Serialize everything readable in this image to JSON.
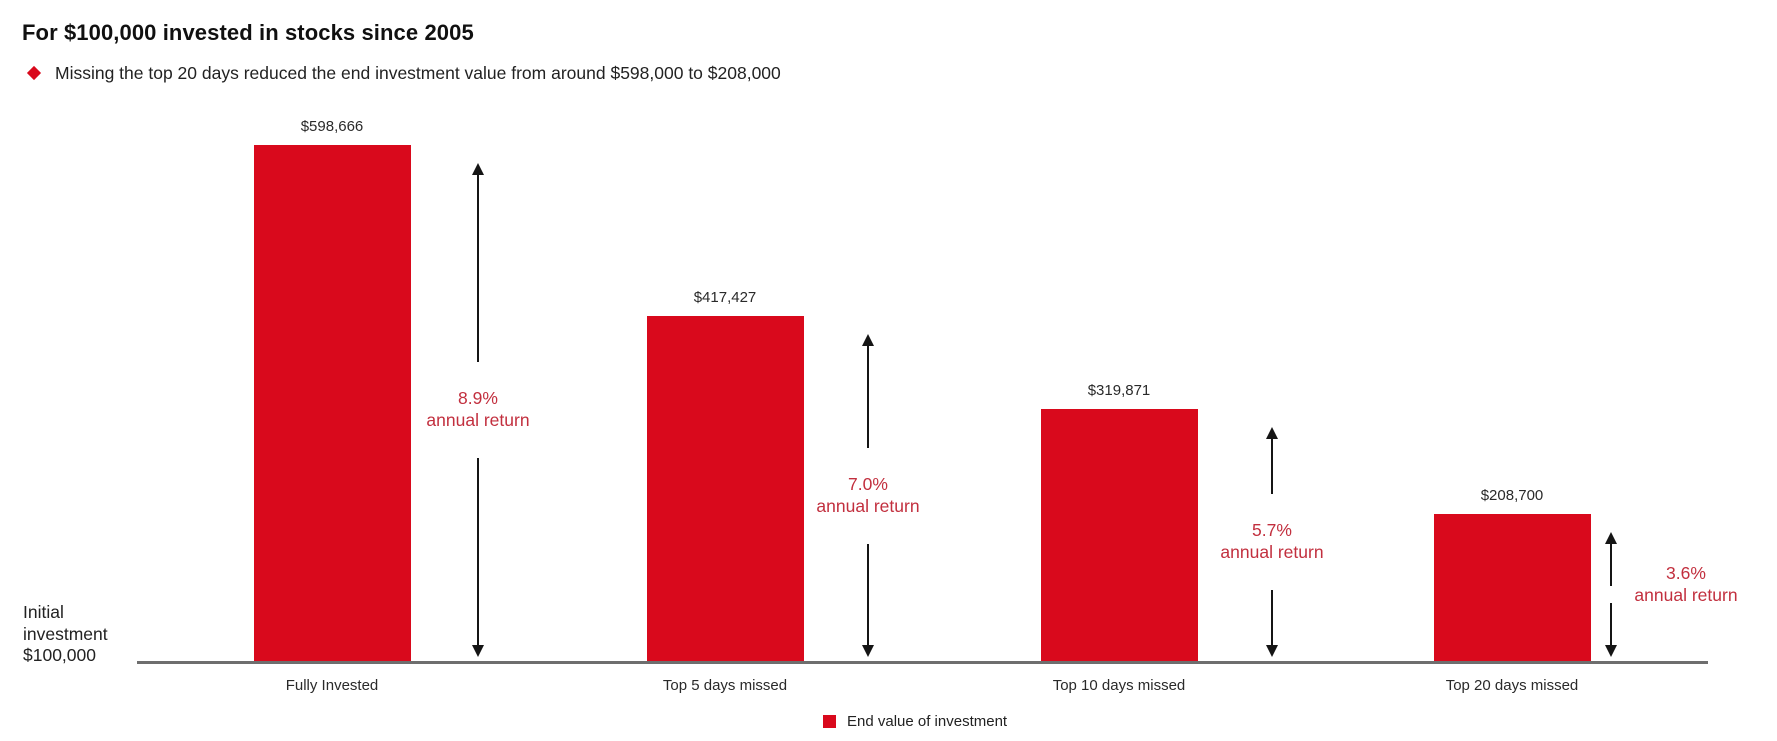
{
  "title": "For $100,000 invested in stocks since 2005",
  "bullet": {
    "text": "Missing the top 20 days reduced the end investment value from around $598,000 to $208,000"
  },
  "axis_label": {
    "line1": "Initial",
    "line2": "investment",
    "line3": "$100,000"
  },
  "legend": {
    "label": "End value of investment"
  },
  "colors": {
    "bar": "#d9091c",
    "accent_text": "#c22f3e",
    "axis": "#6e6e6e",
    "arrow": "#151515"
  },
  "chart_data": {
    "type": "bar",
    "title": "For $100,000 invested in stocks since 2005",
    "subtitle": "Missing the top 20 days reduced the end investment value from around $598,000 to $208,000",
    "categories": [
      "Fully Invested",
      "Top 5 days missed",
      "Top 10 days missed",
      "Top 20 days missed"
    ],
    "values": [
      598666,
      417427,
      319871,
      208700
    ],
    "value_labels": [
      "$598,666",
      "$417,427",
      "$319,871",
      "$208,700"
    ],
    "annual_return_pct": [
      "8.9%",
      "7.0%",
      "5.7%",
      "3.6%"
    ],
    "annual_return_word": "annual return",
    "baseline_label": "Initial investment $100,000",
    "legend": [
      "End value of investment"
    ],
    "grid": false,
    "legend_position": "bottom-center",
    "ylabel": "",
    "xlabel": ""
  }
}
